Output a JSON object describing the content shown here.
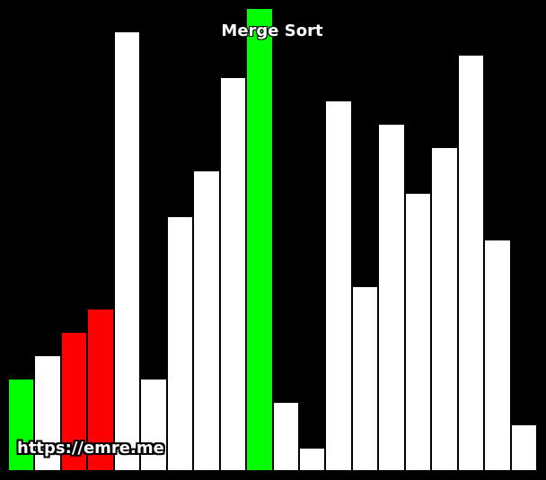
{
  "title": "Merge Sort",
  "watermark": "https://emre.me",
  "colors": {
    "background": "#000000",
    "default": "#ffffff",
    "compare": "#ff0000",
    "active": "#00ff00"
  },
  "chart_data": {
    "type": "bar",
    "ylim": [
      0,
      20
    ],
    "values": [
      4,
      5,
      6,
      7,
      19,
      4,
      11,
      13,
      17,
      20,
      3,
      1,
      16,
      8,
      15,
      12,
      14,
      18,
      10,
      2
    ],
    "states": [
      "active",
      "default",
      "compare",
      "compare",
      "default",
      "default",
      "default",
      "default",
      "default",
      "active",
      "default",
      "default",
      "default",
      "default",
      "default",
      "default",
      "default",
      "default",
      "default",
      "default"
    ]
  }
}
